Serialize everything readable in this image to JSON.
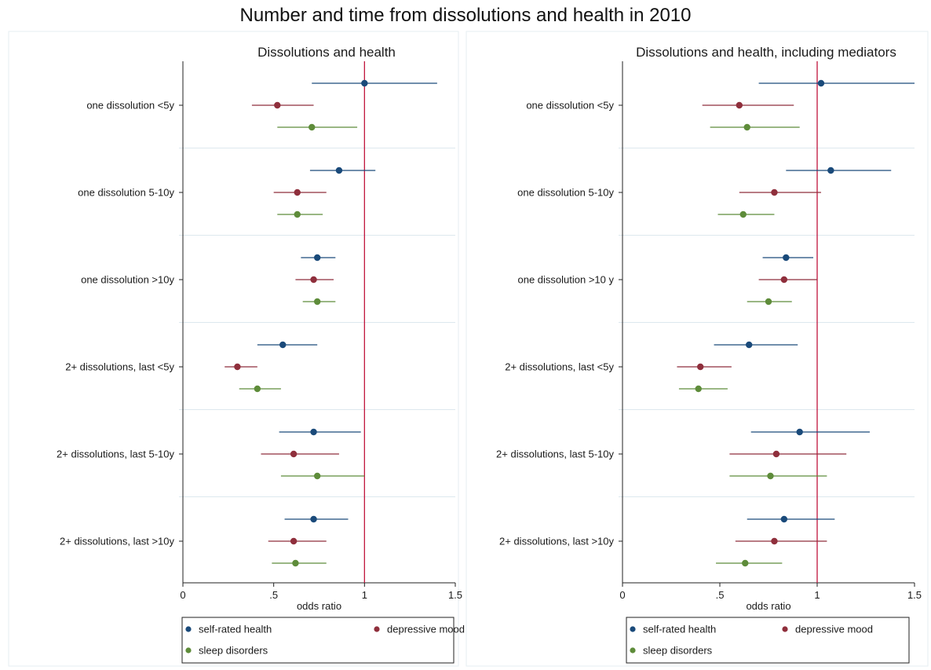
{
  "figure": {
    "title": "Number and time from dissolutions and health in 2010"
  },
  "colors": {
    "self_rated_health": "#1a4a7a",
    "depressive_mood": "#8f2f3c",
    "sleep_disorders": "#5e8c3a",
    "reference_line": "#c0143c",
    "separator": "#dde8ee"
  },
  "chart_data": [
    {
      "type": "scatter",
      "title": "Dissolutions and health",
      "xlabel": "odds ratio",
      "xlim": [
        0,
        1.5
      ],
      "x_ticks": [
        0,
        0.5,
        1,
        1.5
      ],
      "x_tick_labels": [
        "0",
        ".5",
        "1",
        "1.5"
      ],
      "reference_line": 1,
      "categories": [
        "one dissolution <5y",
        "one dissolution 5-10y",
        "one dissolution >10y",
        "2+ dissolutions, last <5y",
        "2+ dissolutions, last 5-10y",
        "2+ dissolutions, last >10y"
      ],
      "legend": {
        "position": "bottom",
        "entries": [
          "self-rated health",
          "depressive mood",
          "sleep disorders"
        ]
      },
      "series": [
        {
          "name": "self-rated health",
          "color": "#1a4a7a",
          "points": [
            {
              "estimate": 1.0,
              "ci": [
                0.71,
                1.4
              ]
            },
            {
              "estimate": 0.86,
              "ci": [
                0.7,
                1.06
              ]
            },
            {
              "estimate": 0.74,
              "ci": [
                0.65,
                0.84
              ]
            },
            {
              "estimate": 0.55,
              "ci": [
                0.41,
                0.74
              ]
            },
            {
              "estimate": 0.72,
              "ci": [
                0.53,
                0.98
              ]
            },
            {
              "estimate": 0.72,
              "ci": [
                0.56,
                0.91
              ]
            }
          ]
        },
        {
          "name": "depressive mood",
          "color": "#8f2f3c",
          "points": [
            {
              "estimate": 0.52,
              "ci": [
                0.38,
                0.72
              ]
            },
            {
              "estimate": 0.63,
              "ci": [
                0.5,
                0.79
              ]
            },
            {
              "estimate": 0.72,
              "ci": [
                0.62,
                0.83
              ]
            },
            {
              "estimate": 0.3,
              "ci": [
                0.23,
                0.41
              ]
            },
            {
              "estimate": 0.61,
              "ci": [
                0.43,
                0.86
              ]
            },
            {
              "estimate": 0.61,
              "ci": [
                0.47,
                0.79
              ]
            }
          ]
        },
        {
          "name": "sleep disorders",
          "color": "#5e8c3a",
          "points": [
            {
              "estimate": 0.71,
              "ci": [
                0.52,
                0.96
              ]
            },
            {
              "estimate": 0.63,
              "ci": [
                0.52,
                0.77
              ]
            },
            {
              "estimate": 0.74,
              "ci": [
                0.66,
                0.84
              ]
            },
            {
              "estimate": 0.41,
              "ci": [
                0.31,
                0.54
              ]
            },
            {
              "estimate": 0.74,
              "ci": [
                0.54,
                1.0
              ]
            },
            {
              "estimate": 0.62,
              "ci": [
                0.49,
                0.79
              ]
            }
          ]
        }
      ]
    },
    {
      "type": "scatter",
      "title": "Dissolutions and health, including mediators",
      "xlabel": "odds ratio",
      "xlim": [
        0,
        1.5
      ],
      "x_ticks": [
        0,
        0.5,
        1,
        1.5
      ],
      "x_tick_labels": [
        "0",
        ".5",
        "1",
        "1.5"
      ],
      "reference_line": 1,
      "categories": [
        "one dissolution <5y",
        "one dissolution 5-10y",
        "one dissolution >10 y",
        "2+ dissolutions, last <5y",
        "2+ dissolutions, last 5-10y",
        "2+ dissolutions, last >10y"
      ],
      "legend": {
        "position": "bottom",
        "entries": [
          "self-rated health",
          "depressive mood",
          "sleep disorders"
        ]
      },
      "series": [
        {
          "name": "self-rated health",
          "color": "#1a4a7a",
          "points": [
            {
              "estimate": 1.02,
              "ci": [
                0.7,
                1.5
              ]
            },
            {
              "estimate": 1.07,
              "ci": [
                0.84,
                1.38
              ]
            },
            {
              "estimate": 0.84,
              "ci": [
                0.72,
                0.98
              ]
            },
            {
              "estimate": 0.65,
              "ci": [
                0.47,
                0.9
              ]
            },
            {
              "estimate": 0.91,
              "ci": [
                0.66,
                1.27
              ]
            },
            {
              "estimate": 0.83,
              "ci": [
                0.64,
                1.09
              ]
            }
          ]
        },
        {
          "name": "depressive mood",
          "color": "#8f2f3c",
          "points": [
            {
              "estimate": 0.6,
              "ci": [
                0.41,
                0.88
              ]
            },
            {
              "estimate": 0.78,
              "ci": [
                0.6,
                1.02
              ]
            },
            {
              "estimate": 0.83,
              "ci": [
                0.7,
                1.0
              ]
            },
            {
              "estimate": 0.4,
              "ci": [
                0.28,
                0.56
              ]
            },
            {
              "estimate": 0.79,
              "ci": [
                0.55,
                1.15
              ]
            },
            {
              "estimate": 0.78,
              "ci": [
                0.58,
                1.05
              ]
            }
          ]
        },
        {
          "name": "sleep disorders",
          "color": "#5e8c3a",
          "points": [
            {
              "estimate": 0.64,
              "ci": [
                0.45,
                0.91
              ]
            },
            {
              "estimate": 0.62,
              "ci": [
                0.49,
                0.78
              ]
            },
            {
              "estimate": 0.75,
              "ci": [
                0.64,
                0.87
              ]
            },
            {
              "estimate": 0.39,
              "ci": [
                0.29,
                0.54
              ]
            },
            {
              "estimate": 0.76,
              "ci": [
                0.55,
                1.05
              ]
            },
            {
              "estimate": 0.63,
              "ci": [
                0.48,
                0.82
              ]
            }
          ]
        }
      ]
    }
  ]
}
